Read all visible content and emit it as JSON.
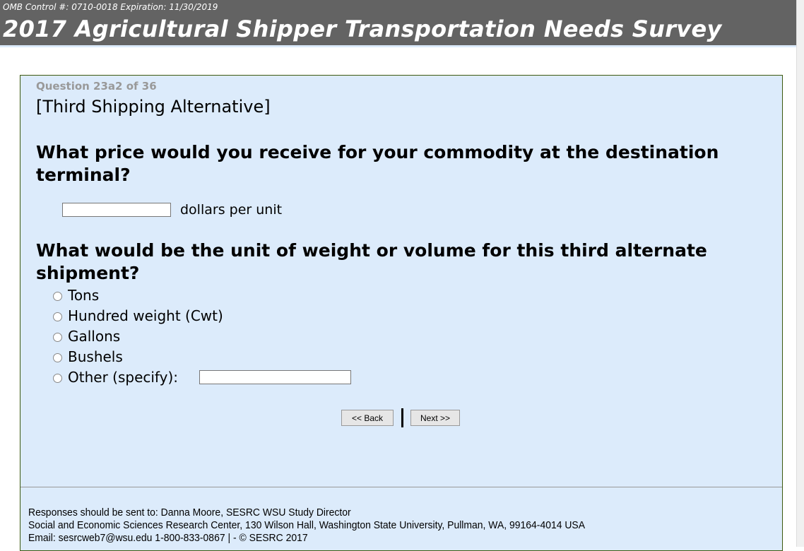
{
  "header": {
    "omb": "OMB Control #: 0710-0018 Expiration: 11/30/2019",
    "title": "2017 Agricultural Shipper Transportation Needs Survey"
  },
  "question": {
    "number": "Question 23a2 of 36",
    "section": "[Third Shipping Alternative]"
  },
  "q1": {
    "text": "What price would you receive for your commodity at the destination terminal?",
    "value": "",
    "unit": "dollars per unit"
  },
  "q2": {
    "text": "What would be the unit of weight or volume for this third alternate shipment?",
    "options": [
      "Tons",
      "Hundred weight (Cwt)",
      "Gallons",
      "Bushels",
      "Other (specify):"
    ],
    "other_value": ""
  },
  "nav": {
    "back": "<< Back",
    "next": "Next >>"
  },
  "footer": {
    "line1": "Responses should be sent to: Danna Moore, SESRC WSU Study Director",
    "line2": "Social and Economic Sciences Research Center, 130 Wilson Hall, Washington State University, Pullman, WA, 99164-4014 USA",
    "line3": "Email: sesrcweb7@wsu.edu 1-800-833-0867 | - © SESRC 2017"
  }
}
